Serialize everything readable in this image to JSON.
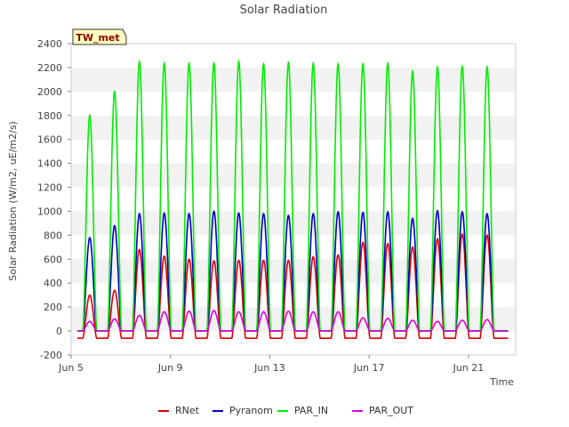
{
  "chart_data": {
    "type": "line",
    "title": "Solar Radiation",
    "xlabel": "Time",
    "ylabel": "Solar Radiation (W/m2, uE/m2/s)",
    "annotation": "TW_met",
    "xlim": [
      5.0,
      22.9
    ],
    "ylim": [
      -200,
      2400
    ],
    "x_ticks": [
      {
        "value": 5,
        "label": "Jun 5"
      },
      {
        "value": 9,
        "label": "Jun 9"
      },
      {
        "value": 13,
        "label": "Jun 13"
      },
      {
        "value": 17,
        "label": "Jun 17"
      },
      {
        "value": 21,
        "label": "Jun 21"
      }
    ],
    "y_ticks": [
      -200,
      0,
      200,
      400,
      600,
      800,
      1000,
      1200,
      1400,
      1600,
      1800,
      2000,
      2200,
      2400
    ],
    "x_unit": "day of June (noon peaks)",
    "days": [
      5.75,
      6.75,
      7.75,
      8.75,
      9.75,
      10.75,
      11.75,
      12.75,
      13.75,
      14.75,
      15.75,
      16.75,
      17.75,
      18.75,
      19.75,
      20.75,
      21.75
    ],
    "series": [
      {
        "name": "RNet",
        "color": "#dd0000",
        "night": -60,
        "peaks": [
          300,
          340,
          680,
          625,
          600,
          585,
          590,
          590,
          590,
          620,
          635,
          740,
          730,
          700,
          770,
          810,
          800
        ]
      },
      {
        "name": "Pyranom",
        "color": "#0000cc",
        "night": 0,
        "peaks": [
          780,
          880,
          980,
          985,
          980,
          1000,
          985,
          980,
          965,
          980,
          995,
          990,
          995,
          940,
          1005,
          995,
          980
        ]
      },
      {
        "name": "PAR_IN",
        "color": "#00ee00",
        "night": 0,
        "peaks": [
          1800,
          2000,
          2250,
          2235,
          2235,
          2235,
          2250,
          2230,
          2240,
          2235,
          2230,
          2230,
          2235,
          2170,
          2205,
          2210,
          2205
        ]
      },
      {
        "name": "PAR_OUT",
        "color": "#dd00dd",
        "night": 0,
        "peaks": [
          80,
          100,
          130,
          160,
          165,
          170,
          160,
          160,
          165,
          160,
          160,
          110,
          105,
          90,
          80,
          90,
          95
        ]
      }
    ],
    "grid": "horizontal bands",
    "legend": "bottom"
  }
}
